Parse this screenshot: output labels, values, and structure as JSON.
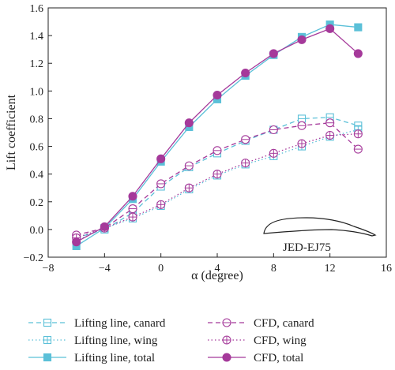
{
  "chart_data": {
    "type": "line",
    "xlabel": "α (degree)",
    "ylabel": "Lift coefficient",
    "xlim": [
      -8,
      16
    ],
    "ylim": [
      -0.2,
      1.6
    ],
    "xticks": [
      -8,
      -4,
      0,
      4,
      8,
      12,
      16
    ],
    "xtick_labels": [
      "−8",
      "−4",
      "0",
      "4",
      "8",
      "12",
      "16"
    ],
    "yticks": [
      -0.2,
      0.0,
      0.2,
      0.4,
      0.6,
      0.8,
      1.0,
      1.2,
      1.4,
      1.6
    ],
    "ytick_labels": [
      "−0.2",
      "0.0",
      "0.2",
      "0.4",
      "0.6",
      "0.8",
      "1.0",
      "1.2",
      "1.4",
      "1.6"
    ],
    "grid": false,
    "legend_position": "bottom",
    "annotation": "JED-EJ75",
    "colors": {
      "lifting_line": "#5bc0d8",
      "cfd": "#a5399a"
    },
    "series": [
      {
        "name": "Lifting line, canard",
        "color": "#5bc0d8",
        "dash": "dashed",
        "marker": "square-hline",
        "x": [
          -6,
          -4,
          -2,
          0,
          2,
          4,
          6,
          8,
          10,
          12,
          14
        ],
        "y": [
          -0.06,
          0.0,
          0.12,
          0.31,
          0.45,
          0.55,
          0.64,
          0.72,
          0.8,
          0.81,
          0.75
        ]
      },
      {
        "name": "Lifting line, wing",
        "color": "#5bc0d8",
        "dash": "dotted",
        "marker": "square-plus",
        "x": [
          -6,
          -4,
          -2,
          0,
          2,
          4,
          6,
          8,
          10,
          12,
          14
        ],
        "y": [
          -0.08,
          0.01,
          0.08,
          0.17,
          0.29,
          0.39,
          0.47,
          0.53,
          0.6,
          0.67,
          0.72
        ]
      },
      {
        "name": "Lifting line, total",
        "color": "#5bc0d8",
        "dash": "solid",
        "marker": "square-filled",
        "x": [
          -6,
          -4,
          -2,
          0,
          2,
          4,
          6,
          8,
          10,
          12,
          14
        ],
        "y": [
          -0.12,
          0.01,
          0.22,
          0.49,
          0.74,
          0.94,
          1.11,
          1.26,
          1.39,
          1.48,
          1.46
        ]
      },
      {
        "name": "CFD, canard",
        "color": "#a5399a",
        "dash": "dashed",
        "marker": "circle-hline",
        "x": [
          -6,
          -4,
          -2,
          0,
          2,
          4,
          6,
          8,
          10,
          12,
          14
        ],
        "y": [
          -0.04,
          0.01,
          0.15,
          0.33,
          0.46,
          0.57,
          0.65,
          0.72,
          0.75,
          0.77,
          0.58
        ]
      },
      {
        "name": "CFD, wing",
        "color": "#a5399a",
        "dash": "dotted",
        "marker": "circle-plus",
        "x": [
          -6,
          -4,
          -2,
          0,
          2,
          4,
          6,
          8,
          10,
          12,
          14
        ],
        "y": [
          -0.06,
          0.01,
          0.09,
          0.18,
          0.3,
          0.4,
          0.48,
          0.55,
          0.62,
          0.68,
          0.69
        ]
      },
      {
        "name": "CFD, total",
        "color": "#a5399a",
        "dash": "solid",
        "marker": "circle-filled",
        "x": [
          -6,
          -4,
          -2,
          0,
          2,
          4,
          6,
          8,
          10,
          12,
          14
        ],
        "y": [
          -0.09,
          0.02,
          0.24,
          0.51,
          0.77,
          0.97,
          1.13,
          1.27,
          1.37,
          1.45,
          1.27
        ]
      }
    ]
  }
}
